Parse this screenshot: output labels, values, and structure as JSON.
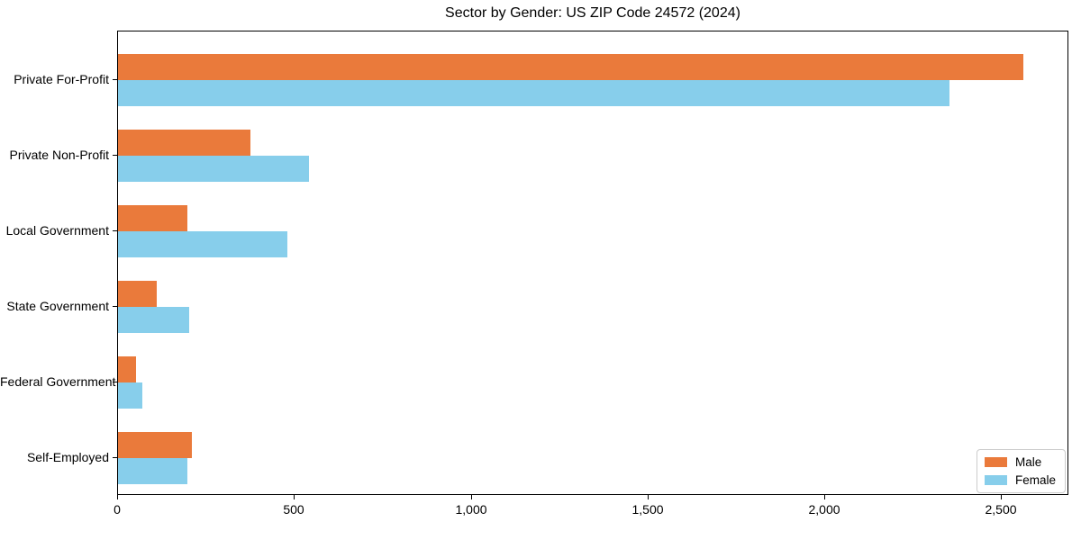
{
  "chart_data": {
    "type": "bar",
    "orientation": "horizontal",
    "title": "Sector by Gender: US ZIP Code 24572 (2024)",
    "categories": [
      "Private For-Profit",
      "Private Non-Profit",
      "Local Government",
      "State Government",
      "Federal Government",
      "Self-Employed"
    ],
    "series": [
      {
        "name": "Male",
        "color": "#EA7A3B",
        "values": [
          2560,
          375,
          195,
          110,
          50,
          210
        ]
      },
      {
        "name": "Female",
        "color": "#87CEEB",
        "values": [
          2350,
          540,
          480,
          200,
          70,
          195
        ]
      }
    ],
    "xlabel": "",
    "ylabel": "",
    "xlim": [
      0,
      2690
    ],
    "xticks": [
      {
        "value": 0,
        "label": "0"
      },
      {
        "value": 500,
        "label": "500"
      },
      {
        "value": 1000,
        "label": "1,000"
      },
      {
        "value": 1500,
        "label": "1,500"
      },
      {
        "value": 2000,
        "label": "2,000"
      },
      {
        "value": 2500,
        "label": "2,500"
      }
    ],
    "grid": false,
    "legend_position": "lower right"
  }
}
